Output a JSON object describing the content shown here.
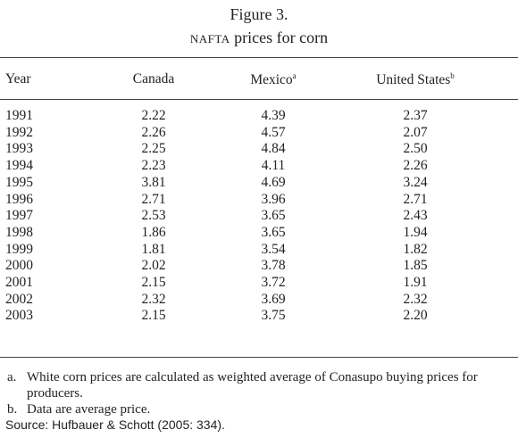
{
  "header": {
    "title": "Figure 3.",
    "subtitle": [
      "NAFTA",
      "prices for corn"
    ]
  },
  "table": {
    "columns": [
      {
        "label": "Year"
      },
      {
        "label": "Canada"
      },
      {
        "label": "Mexico",
        "note": "a"
      },
      {
        "label": "United States",
        "note": "b"
      }
    ],
    "rows": [
      [
        "1991",
        "2.22",
        "4.39",
        "2.37"
      ],
      [
        "1992",
        "2.26",
        "4.57",
        "2.07"
      ],
      [
        "1993",
        "2.25",
        "4.84",
        "2.50"
      ],
      [
        "1994",
        "2.23",
        "4.11",
        "2.26"
      ],
      [
        "1995",
        "3.81",
        "4.69",
        "3.24"
      ],
      [
        "1996",
        "2.71",
        "3.96",
        "2.71"
      ],
      [
        "1997",
        "2.53",
        "3.65",
        "2.43"
      ],
      [
        "1998",
        "1.86",
        "3.65",
        "1.94"
      ],
      [
        "1999",
        "1.81",
        "3.54",
        "1.82"
      ],
      [
        "2000",
        "2.02",
        "3.78",
        "1.85"
      ],
      [
        "2001",
        "2.15",
        "3.72",
        "1.91"
      ],
      [
        "2002",
        "2.32",
        "3.69",
        "2.32"
      ],
      [
        "2003",
        "2.15",
        "3.75",
        "2.20"
      ]
    ]
  },
  "notes": [
    {
      "marker": "a.",
      "text": "White corn prices are calculated as weighted average of Conasupo buying prices for producers."
    },
    {
      "marker": "b.",
      "text": "Data are average price."
    }
  ],
  "source": "Source: Hufbauer & Schott (2005: 334)."
}
